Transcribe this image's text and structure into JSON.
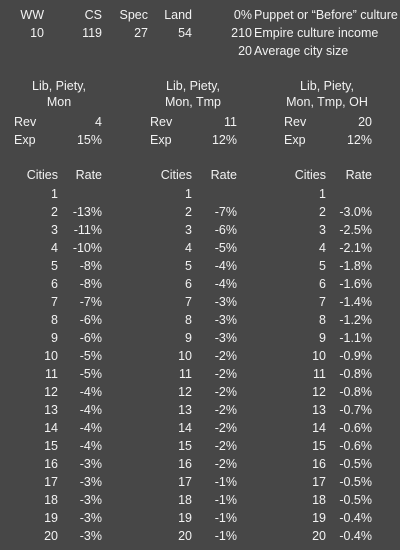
{
  "header": {
    "labels": [
      "WW",
      "CS",
      "Spec",
      "Land"
    ],
    "values": [
      "10",
      "119",
      "27",
      "54"
    ],
    "notes": [
      {
        "num": "0%",
        "text": "Puppet or “Before” culture"
      },
      {
        "num": "210",
        "text": "Empire culture income"
      },
      {
        "num": "20",
        "text": "Average city size"
      }
    ]
  },
  "groups": [
    {
      "title1": "Lib, Piety,",
      "title2": "Mon",
      "rev_label": "Rev",
      "rev_value": "4",
      "exp_label": "Exp",
      "exp_value": "15%",
      "col_cities": "Cities",
      "col_rate": "Rate",
      "rates": [
        "",
        "-13%",
        "-11%",
        "-10%",
        "-8%",
        "-8%",
        "-7%",
        "-6%",
        "-6%",
        "-5%",
        "-5%",
        "-4%",
        "-4%",
        "-4%",
        "-4%",
        "-3%",
        "-3%",
        "-3%",
        "-3%",
        "-3%"
      ]
    },
    {
      "title1": "Lib, Piety,",
      "title2": "Mon, Tmp",
      "rev_label": "Rev",
      "rev_value": "11",
      "exp_label": "Exp",
      "exp_value": "12%",
      "col_cities": "Cities",
      "col_rate": "Rate",
      "rates": [
        "",
        "-7%",
        "-6%",
        "-5%",
        "-4%",
        "-4%",
        "-3%",
        "-3%",
        "-3%",
        "-2%",
        "-2%",
        "-2%",
        "-2%",
        "-2%",
        "-2%",
        "-2%",
        "-1%",
        "-1%",
        "-1%",
        "-1%"
      ]
    },
    {
      "title1": "Lib, Piety,",
      "title2": "Mon, Tmp, OH",
      "rev_label": "Rev",
      "rev_value": "20",
      "exp_label": "Exp",
      "exp_value": "12%",
      "col_cities": "Cities",
      "col_rate": "Rate",
      "rates": [
        "",
        "-3.0%",
        "-2.5%",
        "-2.1%",
        "-1.8%",
        "-1.6%",
        "-1.4%",
        "-1.2%",
        "-1.1%",
        "-0.9%",
        "-0.8%",
        "-0.8%",
        "-0.7%",
        "-0.6%",
        "-0.6%",
        "-0.5%",
        "-0.5%",
        "-0.5%",
        "-0.4%",
        "-0.4%"
      ]
    }
  ],
  "cities": [
    "1",
    "2",
    "3",
    "4",
    "5",
    "6",
    "7",
    "8",
    "9",
    "10",
    "11",
    "12",
    "13",
    "14",
    "15",
    "16",
    "17",
    "18",
    "19",
    "20"
  ]
}
